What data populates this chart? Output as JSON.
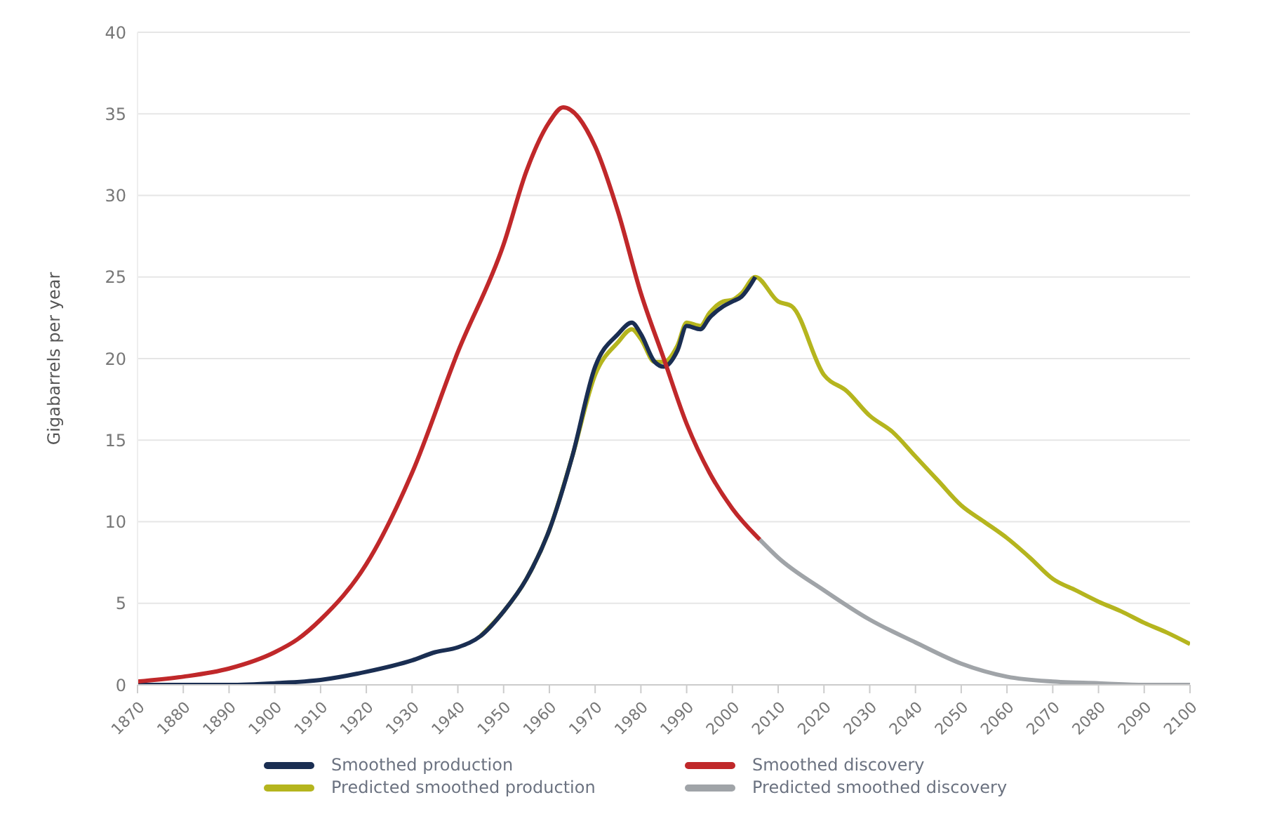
{
  "chart_data": {
    "type": "line",
    "ylabel": "Gigabarrels per year",
    "xlim": [
      1870,
      2100
    ],
    "xticks": [
      1870,
      1880,
      1890,
      1900,
      1910,
      1920,
      1930,
      1940,
      1950,
      1960,
      1970,
      1980,
      1990,
      2000,
      2010,
      2020,
      2030,
      2040,
      2050,
      2060,
      2070,
      2080,
      2090,
      2100
    ],
    "ylim": [
      0,
      40
    ],
    "yticks": [
      0,
      5,
      10,
      15,
      20,
      25,
      30,
      35,
      40
    ],
    "grid": "y",
    "legend": "bottom",
    "marker": "none",
    "line_style": "solid",
    "series": [
      {
        "name": "Predicted smoothed production",
        "color": "#b5b51e",
        "x": [
          1945,
          1950,
          1955,
          1960,
          1965,
          1970,
          1975,
          1978,
          1980,
          1983,
          1985,
          1988,
          1990,
          1993,
          1995,
          1998,
          2000,
          2002,
          2005,
          2010,
          2013,
          2020,
          2025,
          2030,
          2035,
          2040,
          2045,
          2050,
          2055,
          2060,
          2065,
          2070,
          2075,
          2080,
          2085,
          2090,
          2095,
          2100
        ],
        "values": [
          3.0,
          4.5,
          6.5,
          9.5,
          14,
          19.0,
          21.0,
          21.8,
          21.2,
          19.8,
          19.8,
          20.8,
          22.2,
          22.0,
          22.8,
          23.5,
          23.6,
          24.0,
          25,
          23.5,
          23.2,
          19,
          18,
          16.5,
          15.5,
          14,
          12.5,
          11,
          10,
          9,
          7.8,
          6.5,
          5.8,
          5.1,
          4.5,
          3.8,
          3.2,
          2.5
        ]
      },
      {
        "name": "Smoothed production",
        "color": "#1a2e52",
        "x": [
          1870,
          1880,
          1890,
          1900,
          1910,
          1920,
          1930,
          1935,
          1940,
          1945,
          1950,
          1955,
          1960,
          1965,
          1970,
          1975,
          1978,
          1980,
          1983,
          1985,
          1988,
          1990,
          1993,
          1995,
          1998,
          2000,
          2002,
          2005
        ],
        "values": [
          0,
          0,
          0,
          0.1,
          0.3,
          0.8,
          1.5,
          2.0,
          2.3,
          3.0,
          4.5,
          6.5,
          9.5,
          14,
          19.5,
          21.5,
          22.2,
          21.5,
          19.8,
          19.5,
          20.5,
          22,
          21.8,
          22.5,
          23.2,
          23.5,
          23.8,
          25
        ]
      },
      {
        "name": "Smoothed discovery",
        "color": "#c0282a",
        "x": [
          1870,
          1880,
          1890,
          1900,
          1905,
          1910,
          1920,
          1930,
          1940,
          1950,
          1955,
          1960,
          1963,
          1970,
          1975,
          1980,
          1985,
          1990,
          1995,
          2000,
          2006
        ],
        "values": [
          0.2,
          0.5,
          1.0,
          2.0,
          2.8,
          4.0,
          7.4,
          13,
          20.4,
          27,
          31.5,
          34.5,
          35.4,
          33,
          29,
          24,
          20,
          16,
          13,
          10.8,
          8.9
        ]
      },
      {
        "name": "Predicted smoothed discovery",
        "color": "#a0a4a8",
        "x": [
          2006,
          2010,
          2020,
          2030,
          2040,
          2050,
          2060,
          2070,
          2080,
          2090,
          2100
        ],
        "values": [
          8.9,
          7.8,
          5.8,
          4.0,
          2.6,
          1.3,
          0.5,
          0.2,
          0.1,
          0,
          0
        ]
      }
    ]
  }
}
